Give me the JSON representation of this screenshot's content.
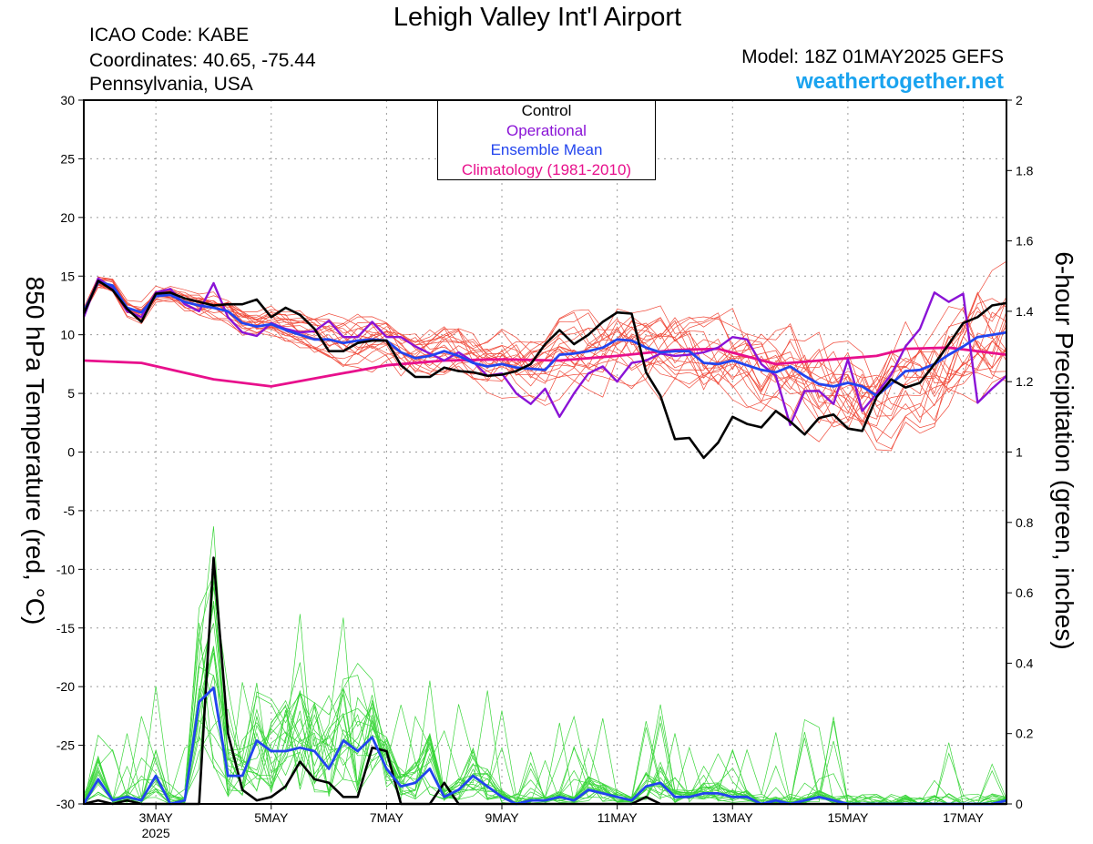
{
  "header": {
    "title": "Lehigh Valley Int'l Airport",
    "icao": "ICAO Code: KABE",
    "coordinates": "Coordinates: 40.65, -75.44",
    "location": "Pennsylvania, USA",
    "model": "Model: 18Z 01MAY2025 GEFS",
    "site": "weathertogether.net"
  },
  "colors": {
    "members_temp": "#f04a3a",
    "members_precip": "#3ad63a",
    "control": "#000000",
    "operational": "#8a13d6",
    "ensemble_mean": "#2244ee",
    "climatology": "#e8108c",
    "site": "#1aa3ef"
  },
  "chart_data": {
    "type": "line",
    "ylabel_left": "850 hPa Temperature (red, °C)",
    "ylabel_right": "6-hour Precipitation (green, inches)",
    "y_left_range": [
      -30,
      30
    ],
    "y_left_ticks": [
      "30",
      "25",
      "20",
      "15",
      "10",
      "5",
      "0",
      "-5",
      "-10",
      "-15",
      "-20",
      "-25",
      "-30"
    ],
    "y_right_range": [
      0,
      2
    ],
    "y_right_ticks": [
      "2",
      "1.8",
      "1.6",
      "1.4",
      "1.2",
      "1",
      "0.8",
      "0.6",
      "0.4",
      "0.2",
      "0"
    ],
    "x_range_days": [
      1.75,
      17.75
    ],
    "x_tick_labels": [
      {
        "day": 3,
        "label": "3MAY",
        "sub": "2025"
      },
      {
        "day": 5,
        "label": "5MAY",
        "sub": ""
      },
      {
        "day": 7,
        "label": "7MAY",
        "sub": ""
      },
      {
        "day": 9,
        "label": "9MAY",
        "sub": ""
      },
      {
        "day": 11,
        "label": "11MAY",
        "sub": ""
      },
      {
        "day": 13,
        "label": "13MAY",
        "sub": ""
      },
      {
        "day": 15,
        "label": "15MAY",
        "sub": ""
      },
      {
        "day": 17,
        "label": "17MAY",
        "sub": ""
      }
    ],
    "grid": true,
    "legend": {
      "position": "top-center",
      "items": [
        {
          "label": "Control",
          "color": "#000000"
        },
        {
          "label": "Operational",
          "color": "#8a13d6"
        },
        {
          "label": "Ensemble Mean",
          "color": "#2244ee"
        },
        {
          "label": "Climatology (1981-2010)",
          "color": "#e8108c"
        }
      ]
    },
    "series": [
      {
        "name": "Control",
        "axis": "left",
        "x": [
          1.75,
          2.0,
          2.25,
          2.5,
          2.75,
          3.0,
          3.25,
          3.5,
          3.75,
          4.0,
          4.25,
          4.5,
          4.75,
          5.0,
          5.25,
          5.5,
          5.75,
          6.0,
          6.25,
          6.5,
          6.75,
          7.0,
          7.25,
          7.5,
          7.75,
          8.0,
          8.25,
          8.5,
          8.75,
          9.0,
          9.25,
          9.5,
          9.75,
          10.0,
          10.25,
          10.5,
          10.75,
          11.0,
          11.25,
          11.5,
          11.75,
          12.0,
          12.25,
          12.5,
          12.75,
          13.0,
          13.25,
          13.5,
          13.75,
          14.0,
          14.25,
          14.5,
          14.75,
          15.0,
          15.25,
          15.5,
          15.75,
          16.0,
          16.25,
          16.5,
          16.75,
          17.0,
          17.25,
          17.5,
          17.75
        ],
        "values": [
          11.8,
          14.6,
          13.8,
          12.2,
          11.1,
          13.5,
          13.6,
          13.1,
          12.8,
          12.5,
          12.6,
          12.6,
          13.0,
          11.5,
          12.3,
          11.7,
          10.5,
          8.6,
          8.6,
          9.3,
          9.5,
          9.5,
          7.4,
          6.4,
          6.4,
          7.2,
          6.9,
          6.8,
          6.5,
          6.6,
          6.9,
          7.5,
          9.2,
          10.4,
          9.2,
          10.0,
          11.1,
          11.9,
          11.8,
          6.8,
          4.8,
          1.1,
          1.2,
          -0.5,
          0.8,
          3.0,
          2.4,
          2.1,
          3.5,
          2.6,
          1.5,
          2.9,
          3.2,
          2.0,
          1.8,
          4.7,
          6.2,
          5.5,
          5.9,
          7.5,
          9.2,
          11.0,
          11.5,
          12.5,
          12.7
        ]
      },
      {
        "name": "Operational",
        "axis": "left",
        "x": [
          1.75,
          2.0,
          2.25,
          2.5,
          2.75,
          3.0,
          3.25,
          3.5,
          3.75,
          4.0,
          4.25,
          4.5,
          4.75,
          5.0,
          5.25,
          5.5,
          5.75,
          6.0,
          6.25,
          6.5,
          6.75,
          7.0,
          7.25,
          7.5,
          7.75,
          8.0,
          8.25,
          8.5,
          8.75,
          9.0,
          9.25,
          9.5,
          9.75,
          10.0,
          10.25,
          10.5,
          10.75,
          11.0,
          11.25,
          11.5,
          11.75,
          12.0,
          12.25,
          12.5,
          12.75,
          13.0,
          13.25,
          13.5,
          13.75,
          14.0,
          14.25,
          14.5,
          14.75,
          15.0,
          15.25,
          15.5,
          15.75,
          16.0,
          16.25,
          16.5,
          16.75,
          17.0,
          17.25,
          17.5,
          17.75
        ],
        "values": [
          11.5,
          14.8,
          14.0,
          12.0,
          11.5,
          13.6,
          13.9,
          12.6,
          12.0,
          14.4,
          11.5,
          10.2,
          9.9,
          11.0,
          10.5,
          10.2,
          10.3,
          11.2,
          9.8,
          9.8,
          11.1,
          9.8,
          9.8,
          9.0,
          8.4,
          7.8,
          8.5,
          7.7,
          6.5,
          6.7,
          5.0,
          4.1,
          5.4,
          3.0,
          5.0,
          6.7,
          7.3,
          6.0,
          7.6,
          7.8,
          8.4,
          8.2,
          8.3,
          8.5,
          8.9,
          9.8,
          9.6,
          7.5,
          6.5,
          2.3,
          5.2,
          5.2,
          4.1,
          7.9,
          3.5,
          5.0,
          6.6,
          9.0,
          10.5,
          13.6,
          12.8,
          13.5,
          4.2,
          5.4,
          6.5
        ]
      },
      {
        "name": "Ensemble Mean",
        "axis": "left",
        "x": [
          1.75,
          2.0,
          2.25,
          2.5,
          2.75,
          3.0,
          3.25,
          3.5,
          3.75,
          4.0,
          4.25,
          4.5,
          4.75,
          5.0,
          5.25,
          5.5,
          5.75,
          6.0,
          6.25,
          6.5,
          6.75,
          7.0,
          7.25,
          7.5,
          7.75,
          8.0,
          8.25,
          8.5,
          8.75,
          9.0,
          9.25,
          9.5,
          9.75,
          10.0,
          10.25,
          10.5,
          10.75,
          11.0,
          11.25,
          11.5,
          11.75,
          12.0,
          12.25,
          12.5,
          12.75,
          13.0,
          13.25,
          13.5,
          13.75,
          14.0,
          14.25,
          14.5,
          14.75,
          15.0,
          15.25,
          15.5,
          15.75,
          16.0,
          16.25,
          16.5,
          16.75,
          17.0,
          17.25,
          17.5,
          17.75
        ],
        "values": [
          12.0,
          14.5,
          14.2,
          12.3,
          11.9,
          13.3,
          13.4,
          12.8,
          12.5,
          12.3,
          12.0,
          11.0,
          10.7,
          10.9,
          10.4,
          10.0,
          9.6,
          9.6,
          9.3,
          9.5,
          9.6,
          9.5,
          8.5,
          8.0,
          8.2,
          8.6,
          8.2,
          7.6,
          7.3,
          7.5,
          7.2,
          7.1,
          7.0,
          8.3,
          8.4,
          8.6,
          8.9,
          9.6,
          9.5,
          8.9,
          8.5,
          8.6,
          8.6,
          7.6,
          7.5,
          7.8,
          7.4,
          7.0,
          6.8,
          7.3,
          6.5,
          5.8,
          5.6,
          5.9,
          5.6,
          4.8,
          5.8,
          6.9,
          7.0,
          7.5,
          8.3,
          9.0,
          9.8,
          10.0,
          10.2
        ]
      },
      {
        "name": "Climatology (1981-2010)",
        "axis": "left",
        "x": [
          1.75,
          2.75,
          4.0,
          5.0,
          6.0,
          7.0,
          8.0,
          9.0,
          10.0,
          11.0,
          12.0,
          12.75,
          13.75,
          14.75,
          15.5,
          16.0,
          16.75,
          17.75
        ],
        "values": [
          7.8,
          7.6,
          6.2,
          5.6,
          6.5,
          7.4,
          7.8,
          7.9,
          7.8,
          8.2,
          8.7,
          8.8,
          7.5,
          7.9,
          8.2,
          8.8,
          8.9,
          8.3
        ]
      },
      {
        "name": "Control",
        "axis": "right",
        "x": [
          1.75,
          2.0,
          2.25,
          2.5,
          2.75,
          3.0,
          3.25,
          3.5,
          3.75,
          4.0,
          4.25,
          4.5,
          4.75,
          5.0,
          5.25,
          5.5,
          5.75,
          6.0,
          6.25,
          6.5,
          6.75,
          7.0,
          7.25,
          7.5,
          7.75,
          8.0,
          8.25,
          8.5,
          8.75,
          9.0,
          9.25,
          9.5,
          9.75,
          10.0,
          10.25,
          10.5,
          10.75,
          11.0,
          11.25,
          11.5,
          11.75,
          12.0,
          12.25,
          12.5,
          12.75,
          13.0,
          13.25,
          13.5,
          13.75,
          14.0,
          14.25,
          14.5,
          14.75,
          15.0,
          15.25,
          15.5,
          15.75,
          16.0,
          16.25,
          16.5,
          16.75,
          17.0,
          17.25,
          17.5,
          17.75
        ],
        "values": [
          0,
          0.01,
          0,
          0.01,
          0,
          0,
          0,
          0,
          0,
          0.7,
          0.2,
          0.04,
          0.01,
          0.02,
          0.05,
          0.12,
          0.07,
          0.06,
          0.02,
          0.02,
          0.16,
          0.15,
          0,
          0,
          0,
          0.06,
          0,
          0,
          0,
          0,
          0,
          0,
          0,
          0,
          0,
          0,
          0,
          0,
          0,
          0.02,
          0,
          0,
          0,
          0,
          0,
          0,
          0,
          0,
          0,
          0,
          0,
          0,
          0,
          0,
          0,
          0,
          0,
          0,
          0,
          0,
          0,
          0,
          0,
          0,
          0
        ]
      },
      {
        "name": "Ensemble Mean",
        "axis": "right",
        "x": [
          1.75,
          2.0,
          2.25,
          2.5,
          2.75,
          3.0,
          3.25,
          3.5,
          3.75,
          4.0,
          4.25,
          4.5,
          4.75,
          5.0,
          5.25,
          5.5,
          5.75,
          6.0,
          6.25,
          6.5,
          6.75,
          7.0,
          7.25,
          7.5,
          7.75,
          8.0,
          8.25,
          8.5,
          8.75,
          9.0,
          9.25,
          9.5,
          9.75,
          10.0,
          10.25,
          10.5,
          10.75,
          11.0,
          11.25,
          11.5,
          11.75,
          12.0,
          12.25,
          12.5,
          12.75,
          13.0,
          13.25,
          13.5,
          13.75,
          14.0,
          14.25,
          14.5,
          14.75,
          15.0,
          15.25,
          15.5,
          15.75,
          16.0,
          16.25,
          16.5,
          16.75,
          17.0,
          17.25,
          17.5,
          17.75
        ],
        "values": [
          0,
          0.07,
          0.01,
          0.02,
          0.01,
          0.08,
          0,
          0.01,
          0.29,
          0.33,
          0.08,
          0.08,
          0.18,
          0.15,
          0.15,
          0.16,
          0.15,
          0.1,
          0.18,
          0.15,
          0.19,
          0.1,
          0.05,
          0.06,
          0.1,
          0.02,
          0.04,
          0.08,
          0.05,
          0.02,
          0,
          0.01,
          0.01,
          0.02,
          0.01,
          0.04,
          0.03,
          0.02,
          0.01,
          0.05,
          0.06,
          0.02,
          0.02,
          0.03,
          0.03,
          0.02,
          0.02,
          0,
          0.01,
          0,
          0.01,
          0.02,
          0.01,
          0,
          0,
          0,
          0,
          0,
          0,
          0,
          0,
          0,
          0,
          0,
          0.01
        ]
      }
    ]
  }
}
